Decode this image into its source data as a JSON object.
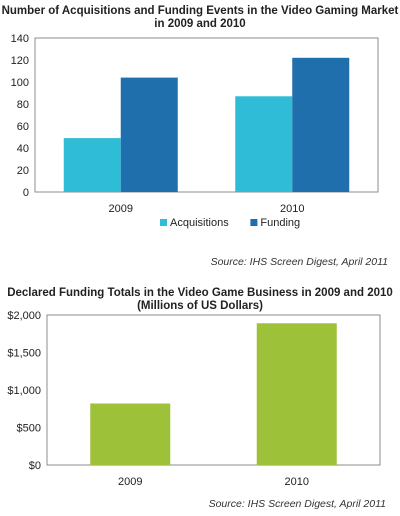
{
  "chart_data": [
    {
      "type": "bar",
      "title": "Number of Acquisitions and Funding Events in the Video Gaming Market in 2009 and 2010",
      "categories": [
        "2009",
        "2010"
      ],
      "series": [
        {
          "name": "Acquisitions",
          "values": [
            49,
            87
          ]
        },
        {
          "name": "Funding",
          "values": [
            104,
            122
          ]
        }
      ],
      "ylim": [
        0,
        140
      ],
      "yticks": [
        0,
        20,
        40,
        60,
        80,
        100,
        120,
        140
      ],
      "grid": false,
      "legend": "bottom",
      "colors": {
        "Acquisitions": "#2fbcd6",
        "Funding": "#1f6fad"
      },
      "source": "Source: IHS Screen Digest, April 2011"
    },
    {
      "type": "bar",
      "title": "Declared Funding Totals in the Video Game Business in 2009 and 2010 (Millions of US Dollars)",
      "categories": [
        "2009",
        "2010"
      ],
      "series": [
        {
          "values": [
            820,
            1890
          ]
        }
      ],
      "ylim": [
        0,
        2000
      ],
      "yticks": [
        0,
        500,
        1000,
        1500,
        2000
      ],
      "ytick_labels": [
        "$0",
        "$500",
        "$1,000",
        "$1,500",
        "$2,000"
      ],
      "grid": false,
      "legend": "none",
      "colors": {
        "bar": "#9dc23a"
      },
      "source": "Source: IHS Screen Digest, April 2011"
    }
  ]
}
